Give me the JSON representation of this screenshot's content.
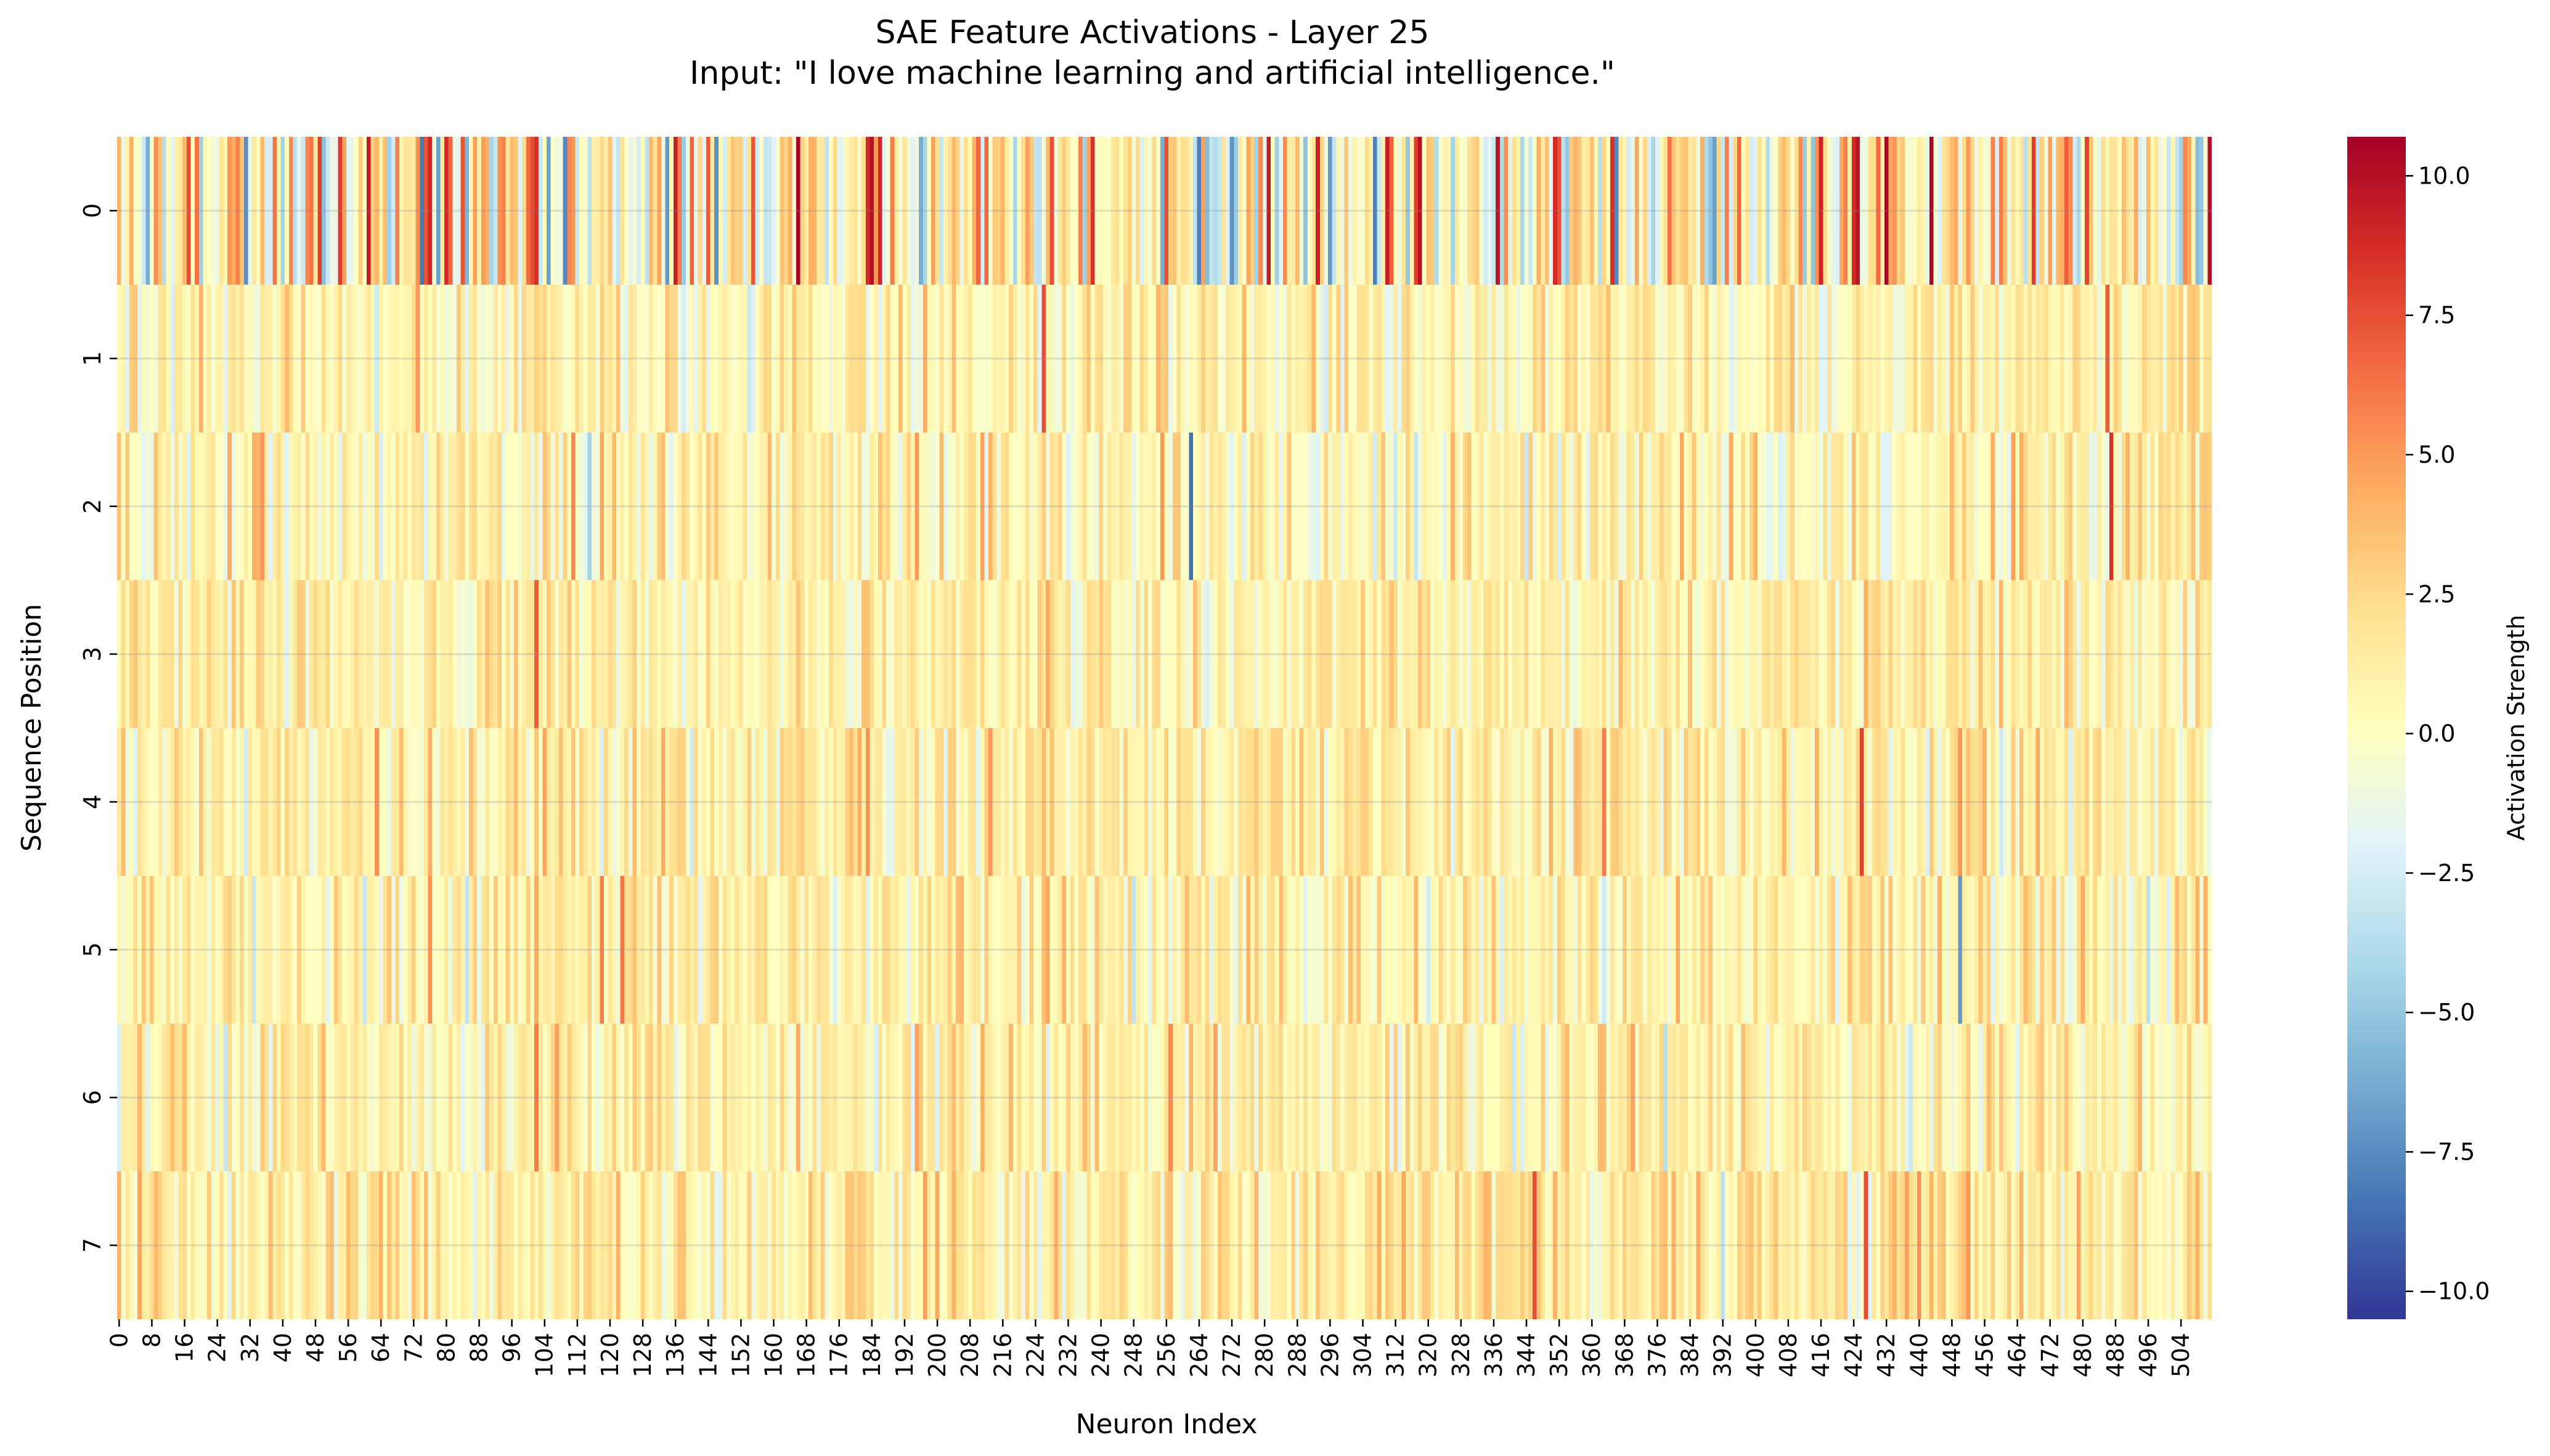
{
  "chart_data": {
    "type": "heatmap",
    "title": "SAE Feature Activations - Layer 25",
    "subtitle": "Input: \"I love machine learning and artificial intelligence.\"",
    "xlabel": "Neuron Index",
    "ylabel": "Sequence Position",
    "colorbar_label": "Activation Strength",
    "colormap": "RdYlBu_r",
    "colormap_stops": [
      "#313695",
      "#4575b4",
      "#74add1",
      "#abd9e9",
      "#e0f3f8",
      "#ffffbf",
      "#fee090",
      "#fdae61",
      "#f46d43",
      "#d73027",
      "#a50026"
    ],
    "vmin": -10.5,
    "vmax": 10.7,
    "n_neurons": 512,
    "rows": [
      "0",
      "1",
      "2",
      "3",
      "4",
      "5",
      "6",
      "7"
    ],
    "x_tick_labels": [
      "0",
      "8",
      "16",
      "24",
      "32",
      "40",
      "48",
      "56",
      "64",
      "72",
      "80",
      "88",
      "96",
      "104",
      "112",
      "120",
      "128",
      "136",
      "144",
      "152",
      "160",
      "168",
      "176",
      "184",
      "192",
      "200",
      "208",
      "216",
      "224",
      "232",
      "240",
      "248",
      "256",
      "264",
      "272",
      "280",
      "288",
      "296",
      "304",
      "312",
      "320",
      "328",
      "336",
      "344",
      "352",
      "360",
      "368",
      "376",
      "384",
      "392",
      "400",
      "408",
      "416",
      "424",
      "432",
      "440",
      "448",
      "456",
      "464",
      "472",
      "480",
      "488",
      "496",
      "504"
    ],
    "colorbar_ticks": [
      "10.0",
      "7.5",
      "5.0",
      "2.5",
      "0.0",
      "−2.5",
      "−5.0",
      "−7.5",
      "−10.0"
    ],
    "colorbar_tick_values": [
      10.0,
      7.5,
      5.0,
      2.5,
      0.0,
      -2.5,
      -5.0,
      -7.5,
      -10.0
    ],
    "row_stats": [
      {
        "row": 0,
        "mean": 1.0,
        "std": 3.6
      },
      {
        "row": 1,
        "mean": 0.8,
        "std": 1.4
      },
      {
        "row": 2,
        "mean": 0.9,
        "std": 1.7
      },
      {
        "row": 3,
        "mean": 1.1,
        "std": 1.3
      },
      {
        "row": 4,
        "mean": 1.2,
        "std": 1.4
      },
      {
        "row": 5,
        "mean": 1.0,
        "std": 1.5
      },
      {
        "row": 6,
        "mean": 0.9,
        "std": 1.4
      },
      {
        "row": 7,
        "mean": 1.3,
        "std": 1.4
      }
    ],
    "notable_cells": [
      {
        "row": 0,
        "neuron": 17,
        "value": 7.5
      },
      {
        "row": 0,
        "neuron": 61,
        "value": 9.5
      },
      {
        "row": 0,
        "neuron": 102,
        "value": 8.5
      },
      {
        "row": 0,
        "neuron": 134,
        "value": -7.0
      },
      {
        "row": 0,
        "neuron": 184,
        "value": 10.0
      },
      {
        "row": 0,
        "neuron": 186,
        "value": 9.0
      },
      {
        "row": 0,
        "neuron": 264,
        "value": -8.0
      },
      {
        "row": 0,
        "neuron": 281,
        "value": 9.5
      },
      {
        "row": 0,
        "neuron": 307,
        "value": -8.0
      },
      {
        "row": 0,
        "neuron": 318,
        "value": 10.0
      },
      {
        "row": 0,
        "neuron": 365,
        "value": 8.5
      },
      {
        "row": 0,
        "neuron": 416,
        "value": 9.0
      },
      {
        "row": 0,
        "neuron": 432,
        "value": 10.5
      },
      {
        "row": 0,
        "neuron": 511,
        "value": 10.0
      },
      {
        "row": 1,
        "neuron": 226,
        "value": 7.5
      },
      {
        "row": 1,
        "neuron": 486,
        "value": 7.0
      },
      {
        "row": 2,
        "neuron": 262,
        "value": -8.5
      },
      {
        "row": 2,
        "neuron": 487,
        "value": 8.5
      },
      {
        "row": 3,
        "neuron": 102,
        "value": 7.0
      },
      {
        "row": 4,
        "neuron": 363,
        "value": 6.0
      },
      {
        "row": 4,
        "neuron": 426,
        "value": 8.0
      },
      {
        "row": 5,
        "neuron": 450,
        "value": -7.0
      },
      {
        "row": 6,
        "neuron": 102,
        "value": 6.0
      },
      {
        "row": 7,
        "neuron": 346,
        "value": 7.5
      },
      {
        "row": 7,
        "neuron": 427,
        "value": 7.5
      }
    ]
  }
}
